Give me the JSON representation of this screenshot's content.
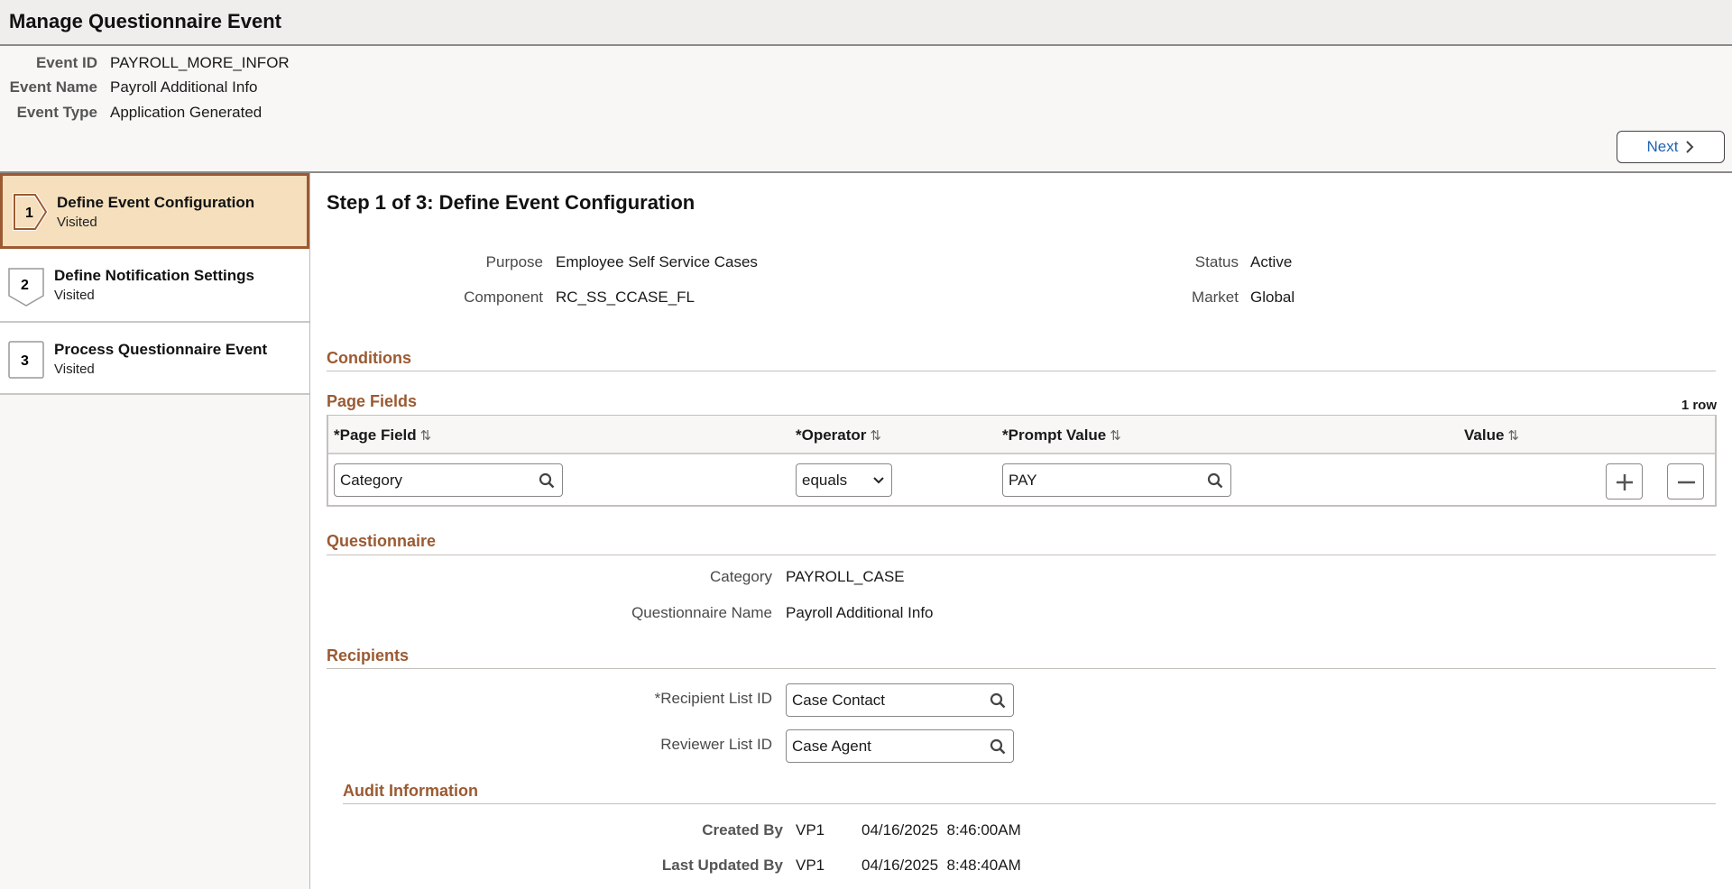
{
  "header": {
    "title": "Manage Questionnaire Event",
    "fields": [
      {
        "label": "Event ID",
        "value": "PAYROLL_MORE_INFOR"
      },
      {
        "label": "Event Name",
        "value": "Payroll Additional Info"
      },
      {
        "label": "Event Type",
        "value": "Application Generated"
      }
    ],
    "next_label": "Next"
  },
  "steps": [
    {
      "num": "1",
      "title": "Define Event Configuration",
      "status": "Visited",
      "active": true
    },
    {
      "num": "2",
      "title": "Define Notification Settings",
      "status": "Visited"
    },
    {
      "num": "3",
      "title": "Process Questionnaire Event",
      "status": "Visited"
    }
  ],
  "main": {
    "step_title": "Step 1 of 3: Define Event Configuration",
    "purpose": {
      "label": "Purpose",
      "value": "Employee Self Service Cases"
    },
    "component": {
      "label": "Component",
      "value": "RC_SS_CCASE_FL"
    },
    "status": {
      "label": "Status",
      "value": "Active"
    },
    "market": {
      "label": "Market",
      "value": "Global"
    },
    "conditions": "Conditions",
    "page_fields": {
      "title": "Page Fields",
      "row_count": "1 row",
      "columns": [
        "*Page Field",
        "*Operator",
        "*Prompt Value",
        "Value"
      ],
      "row": {
        "page_field": "Category",
        "operator": "equals",
        "prompt_value": "PAY",
        "value": ""
      }
    },
    "questionnaire": {
      "title": "Questionnaire",
      "category_label": "Category",
      "category": "PAYROLL_CASE",
      "name_label": "Questionnaire Name",
      "name": "Payroll Additional Info"
    },
    "recipients": {
      "title": "Recipients",
      "recipient_label": "*Recipient List ID",
      "recipient": "Case Contact",
      "reviewer_label": "Reviewer List ID",
      "reviewer": "Case Agent"
    },
    "audit": {
      "title": "Audit Information",
      "created_label": "Created By",
      "created_user": "VP1",
      "created_at": "04/16/2025  8:46:00AM",
      "updated_label": "Last Updated By",
      "updated_user": "VP1",
      "updated_at": "04/16/2025  8:48:40AM"
    }
  },
  "colors": {
    "accent": "#9b5a32",
    "active_step_bg": "#f5dfbd",
    "link": "#1f64b4"
  }
}
